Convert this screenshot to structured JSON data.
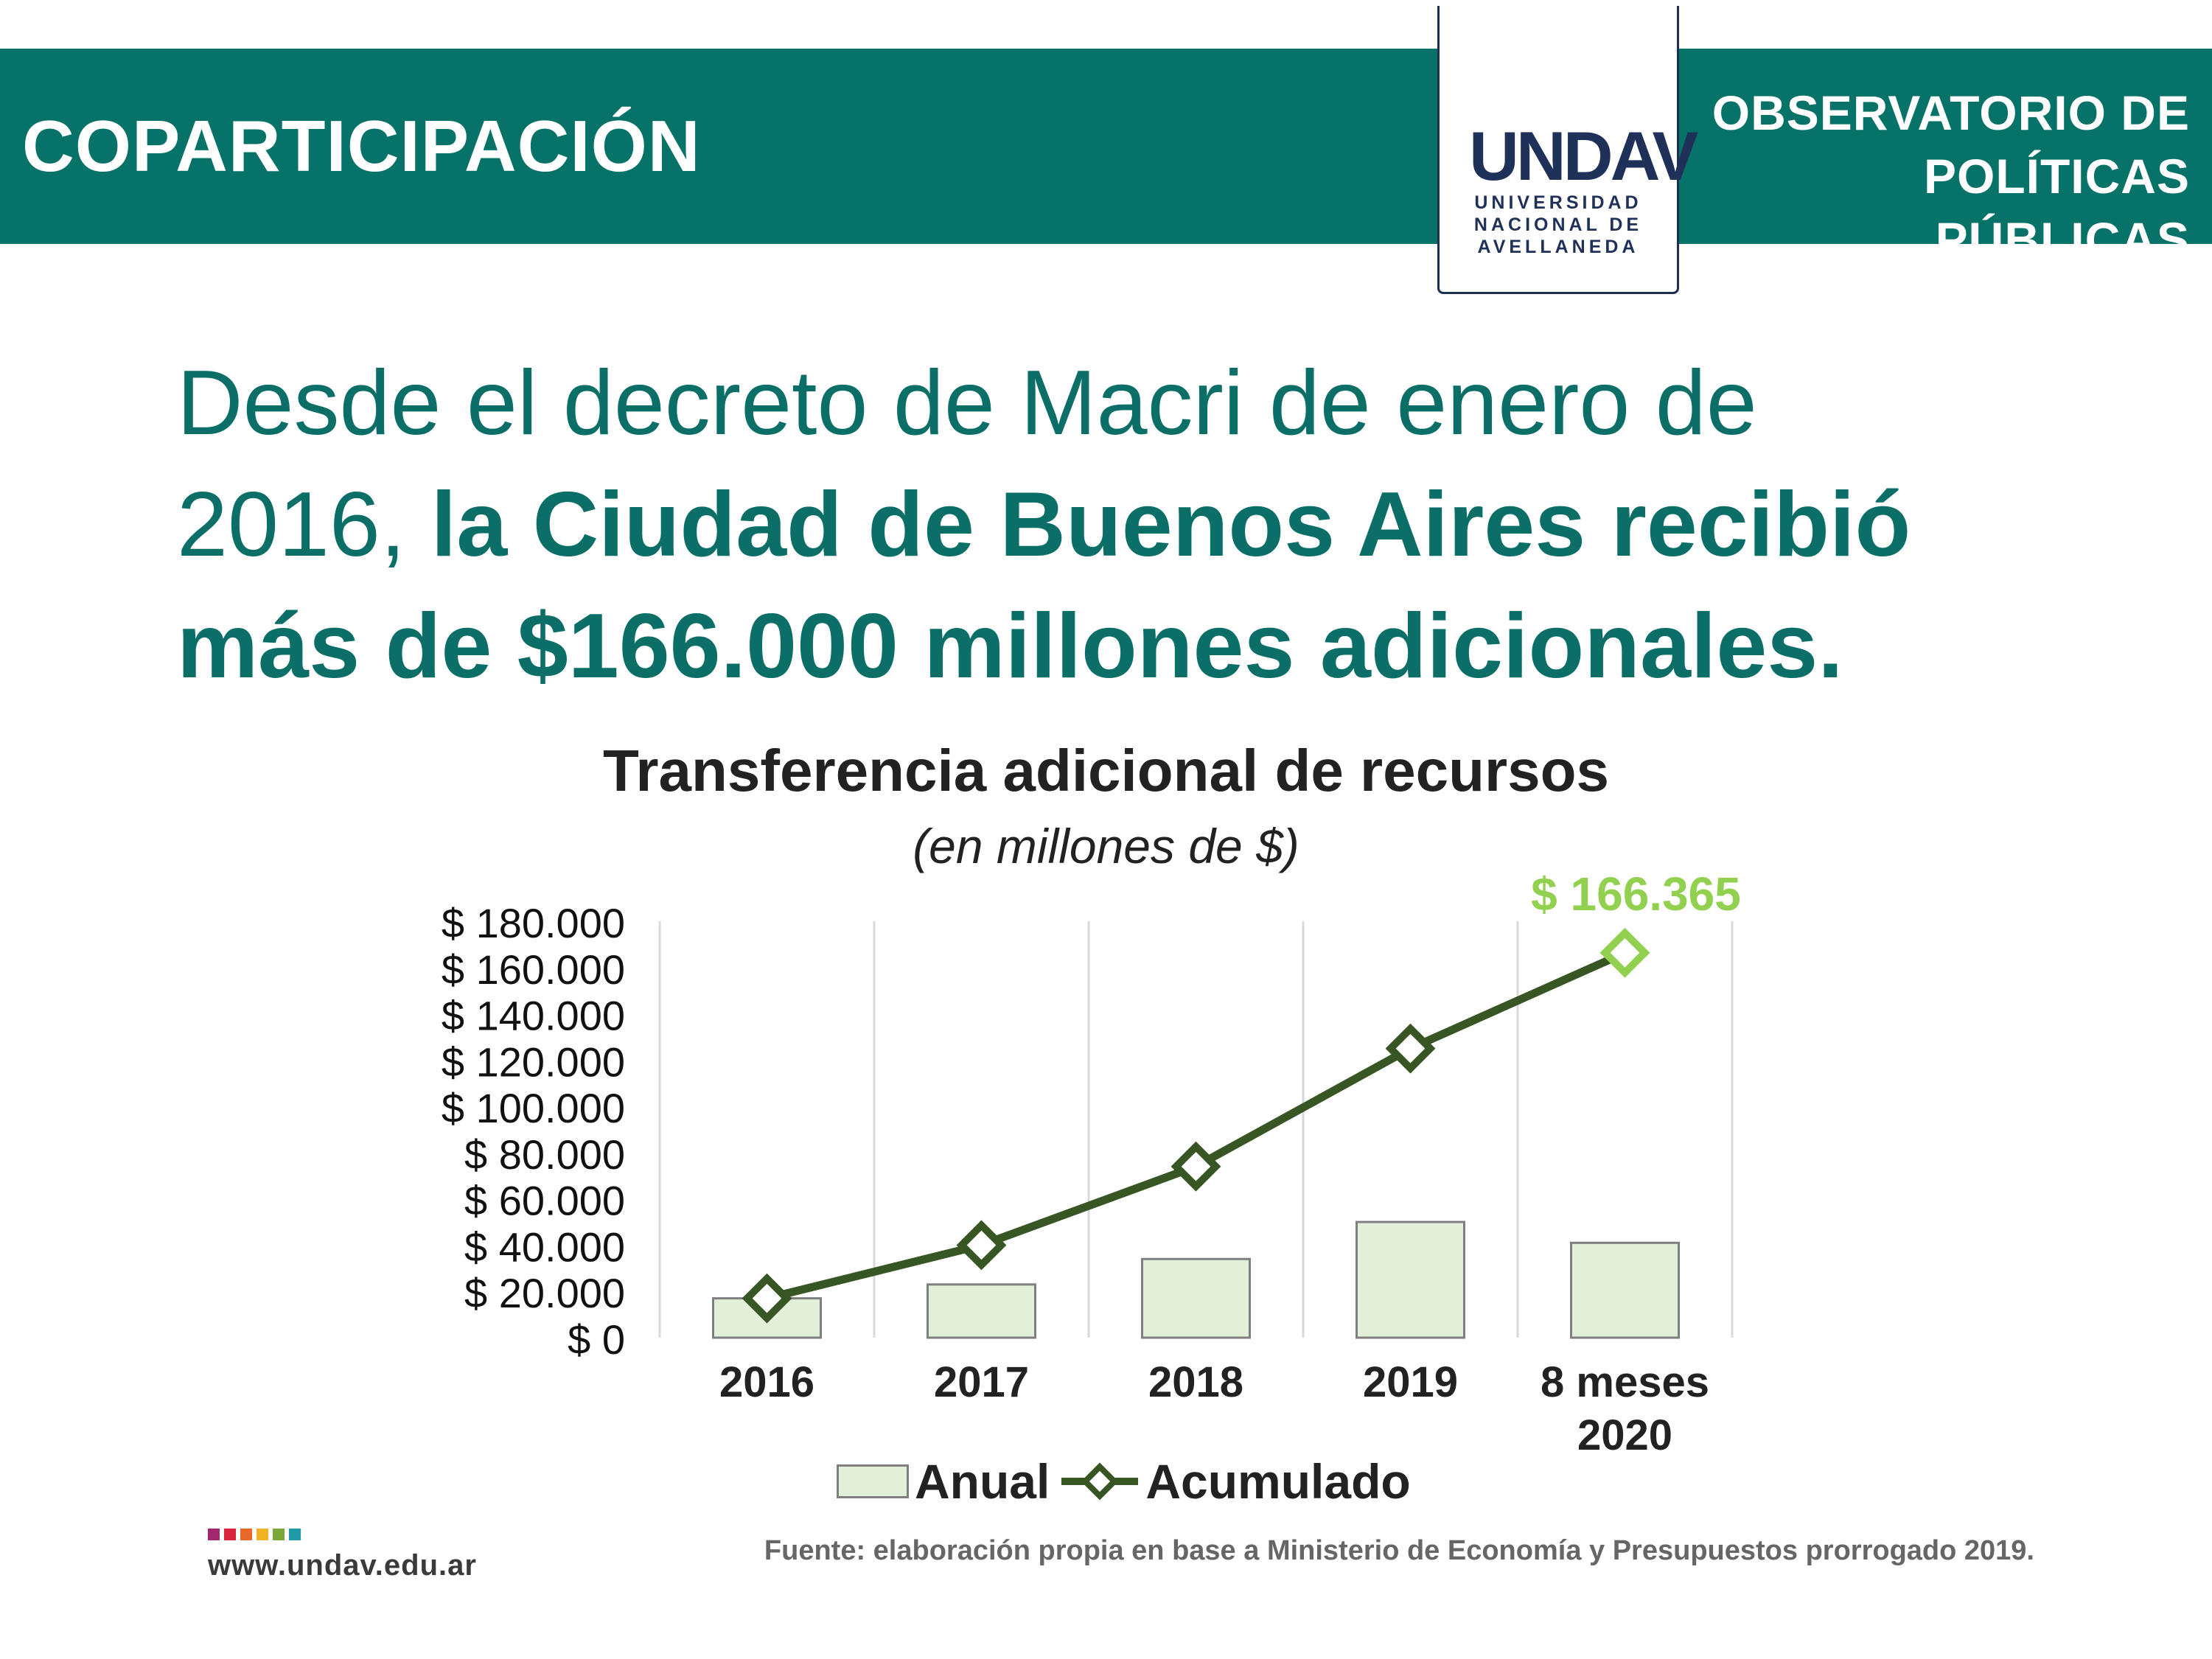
{
  "header": {
    "section": "COPARTICIPACIÓN",
    "observatory_line1": "OBSERVATORIO DE",
    "observatory_line2": "POLÍTICAS PÚBLICAS",
    "logo_mark": "UNDAV",
    "logo_line1": "UNIVERSIDAD",
    "logo_line2": "NACIONAL DE",
    "logo_line3": "AVELLANEDA"
  },
  "headline": {
    "line1": "Desde el decreto de Macri de enero de",
    "line2_normal": "2016, ",
    "line2_bold": "la Ciudad de Buenos Aires recibió",
    "line3_bold": "más de $166.000 millones adicionales."
  },
  "chart_data": {
    "type": "bar",
    "title": "Transferencia adicional de recursos",
    "subtitle": "(en millones de $)",
    "categories": [
      "2016",
      "2017",
      "2018",
      "2019",
      "8 meses 2020"
    ],
    "category_lines": [
      [
        "2016"
      ],
      [
        "2017"
      ],
      [
        "2018"
      ],
      [
        "2019"
      ],
      [
        "8 meses",
        "2020"
      ]
    ],
    "series": [
      {
        "name": "Anual",
        "kind": "bar",
        "values": [
          17000,
          23000,
          34000,
          50000,
          41000
        ]
      },
      {
        "name": "Acumulado",
        "kind": "line",
        "values": [
          17000,
          40000,
          74000,
          125000,
          166365
        ]
      }
    ],
    "ylim": [
      0,
      180000
    ],
    "yticks": [
      0,
      20000,
      40000,
      60000,
      80000,
      100000,
      120000,
      140000,
      160000,
      180000
    ],
    "ytick_labels": [
      "$ 0",
      "$ 20.000",
      "$ 40.000",
      "$ 60.000",
      "$ 80.000",
      "$ 100.000",
      "$ 120.000",
      "$ 140.000",
      "$ 160.000",
      "$ 180.000"
    ],
    "annotation": "$ 166.365",
    "grid": "vertical",
    "legend": "bottom",
    "colors": {
      "bar_fill": "#e2f0da",
      "bar_stroke": "#7f7f7f",
      "line": "#375623",
      "highlight": "#92d050",
      "grid": "#d9d9d9"
    }
  },
  "footer": {
    "website": "www.undav.edu.ar",
    "source": "Fuente: elaboración propia en base a Ministerio de Economía y Presupuestos prorrogado 2019.",
    "dot_colors": [
      "#a3286b",
      "#d7263d",
      "#e8682a",
      "#f0b323",
      "#7aa63a",
      "#1f9aa6"
    ]
  }
}
